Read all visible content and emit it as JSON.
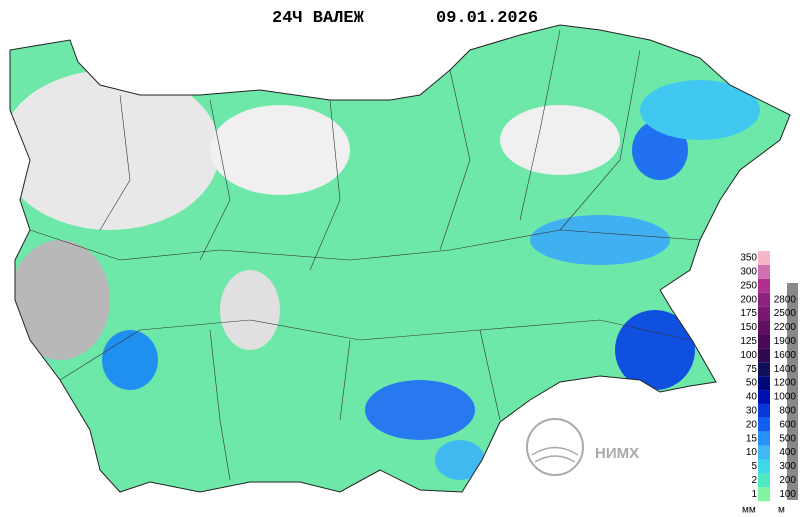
{
  "header": {
    "title": "24Ч ВАЛЕЖ",
    "date": "09.01.2026"
  },
  "legend": {
    "precip": {
      "unit": "мм",
      "labels": [
        350,
        300,
        250,
        200,
        175,
        150,
        125,
        100,
        75,
        50,
        40,
        30,
        20,
        15,
        10,
        5,
        2,
        1
      ],
      "colors": [
        "#f7b6c8",
        "#d070b0",
        "#b0308f",
        "#902080",
        "#7a1870",
        "#601060",
        "#4a0858",
        "#300850",
        "#10105a",
        "#00087a",
        "#0010b0",
        "#0838d8",
        "#1060f0",
        "#2890f8",
        "#40b8f8",
        "#40d8e8",
        "#50e8c0",
        "#80f4a0"
      ]
    },
    "elevation": {
      "unit": "м",
      "labels": [
        2800,
        2500,
        2200,
        1900,
        1600,
        1400,
        1200,
        1000,
        800,
        600,
        500,
        400,
        300,
        200,
        100
      ],
      "colors": [
        "#c00000",
        "#d02000",
        "#e04000",
        "#e06000",
        "#b00000",
        "#800000",
        "#600000",
        "#000080",
        "#0000c0",
        "#0020e0",
        "#0050f0",
        "#0090f0",
        "#00b0e0",
        "#00c8c0",
        "#00d890"
      ]
    }
  },
  "logo": {
    "text": "НИМХ"
  }
}
